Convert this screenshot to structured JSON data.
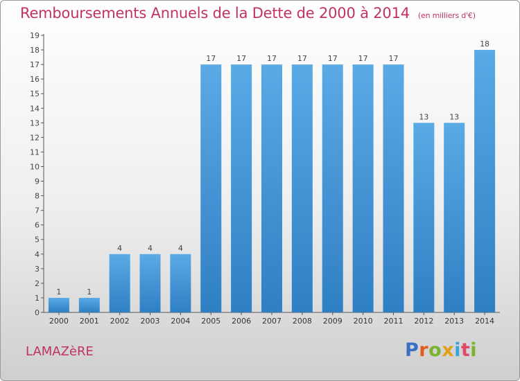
{
  "header": {
    "title": "Remboursements Annuels de la Dette de 2000 à 2014",
    "unit": "(en milliers d'€)"
  },
  "footer": {
    "city": "LAMAZèRE",
    "brand": "Proxiti"
  },
  "colors": {
    "accent": "#c0335f",
    "bar_light": "#5aaae6",
    "bar_dark": "#2f7fc4"
  },
  "chart_data": {
    "type": "bar",
    "title": "Remboursements Annuels de la Dette de 2000 à 2014",
    "subtitle": "(en milliers d'€)",
    "xlabel": "",
    "ylabel": "",
    "categories": [
      "2000",
      "2001",
      "2002",
      "2003",
      "2004",
      "2005",
      "2006",
      "2007",
      "2008",
      "2009",
      "2010",
      "2011",
      "2012",
      "2013",
      "2014"
    ],
    "values": [
      1,
      1,
      4,
      4,
      4,
      17,
      17,
      17,
      17,
      17,
      17,
      17,
      13,
      13,
      18
    ],
    "data_labels": [
      "1",
      "1",
      "4",
      "4",
      "4",
      "17",
      "17",
      "17",
      "17",
      "17",
      "17",
      "17",
      "13",
      "13",
      "18"
    ],
    "ylim": [
      0,
      19
    ],
    "yticks": [
      "0",
      "1",
      "2",
      "3",
      "4",
      "5",
      "6",
      "7",
      "8",
      "9",
      "10",
      "11",
      "12",
      "13",
      "14",
      "15",
      "16",
      "17",
      "18",
      "19"
    ],
    "grid": false,
    "legend": "none"
  }
}
